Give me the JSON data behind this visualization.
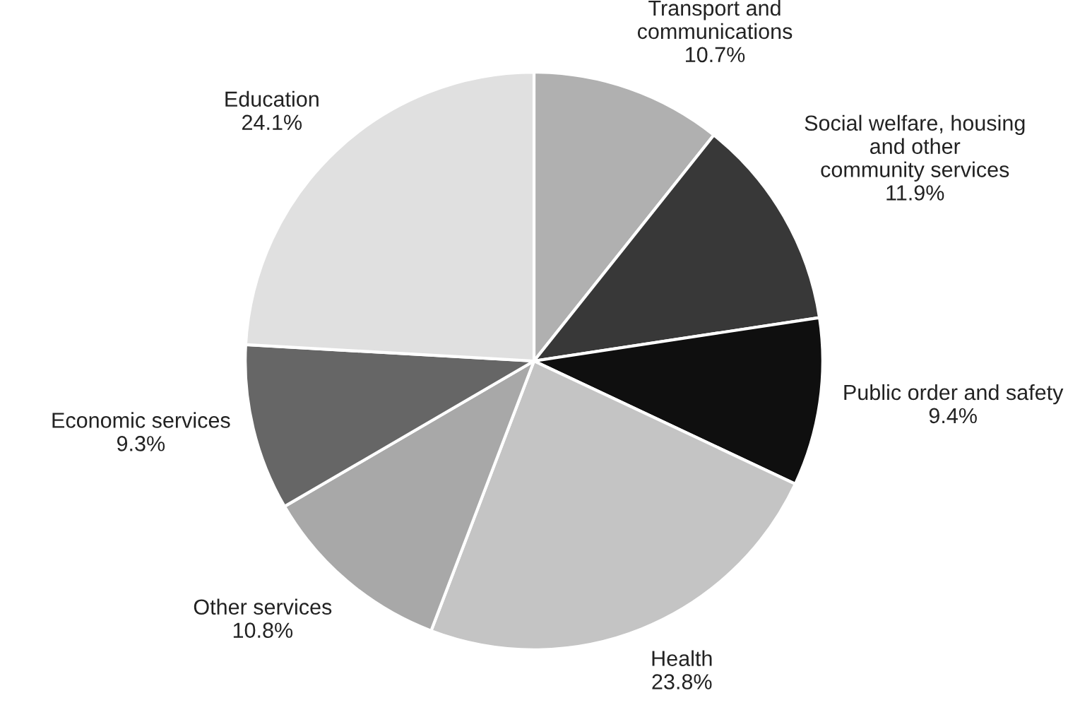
{
  "chart_data": {
    "type": "pie",
    "categories": [
      "Transport and\ncommunications",
      "Social welfare, housing\nand other\ncommunity services",
      "Public order and safety",
      "Health",
      "Other services",
      "Economic services",
      "Education"
    ],
    "values": [
      10.7,
      11.9,
      9.4,
      23.8,
      10.8,
      9.3,
      24.1
    ],
    "value_labels": [
      "10.7%",
      "11.9%",
      "9.4%",
      "23.8%",
      "10.8%",
      "9.3%",
      "24.1%"
    ],
    "colors": [
      "#b0b0b0",
      "#383838",
      "#0f0f0f",
      "#c4c4c4",
      "#a8a8a8",
      "#666666",
      "#e0e0e0"
    ]
  }
}
